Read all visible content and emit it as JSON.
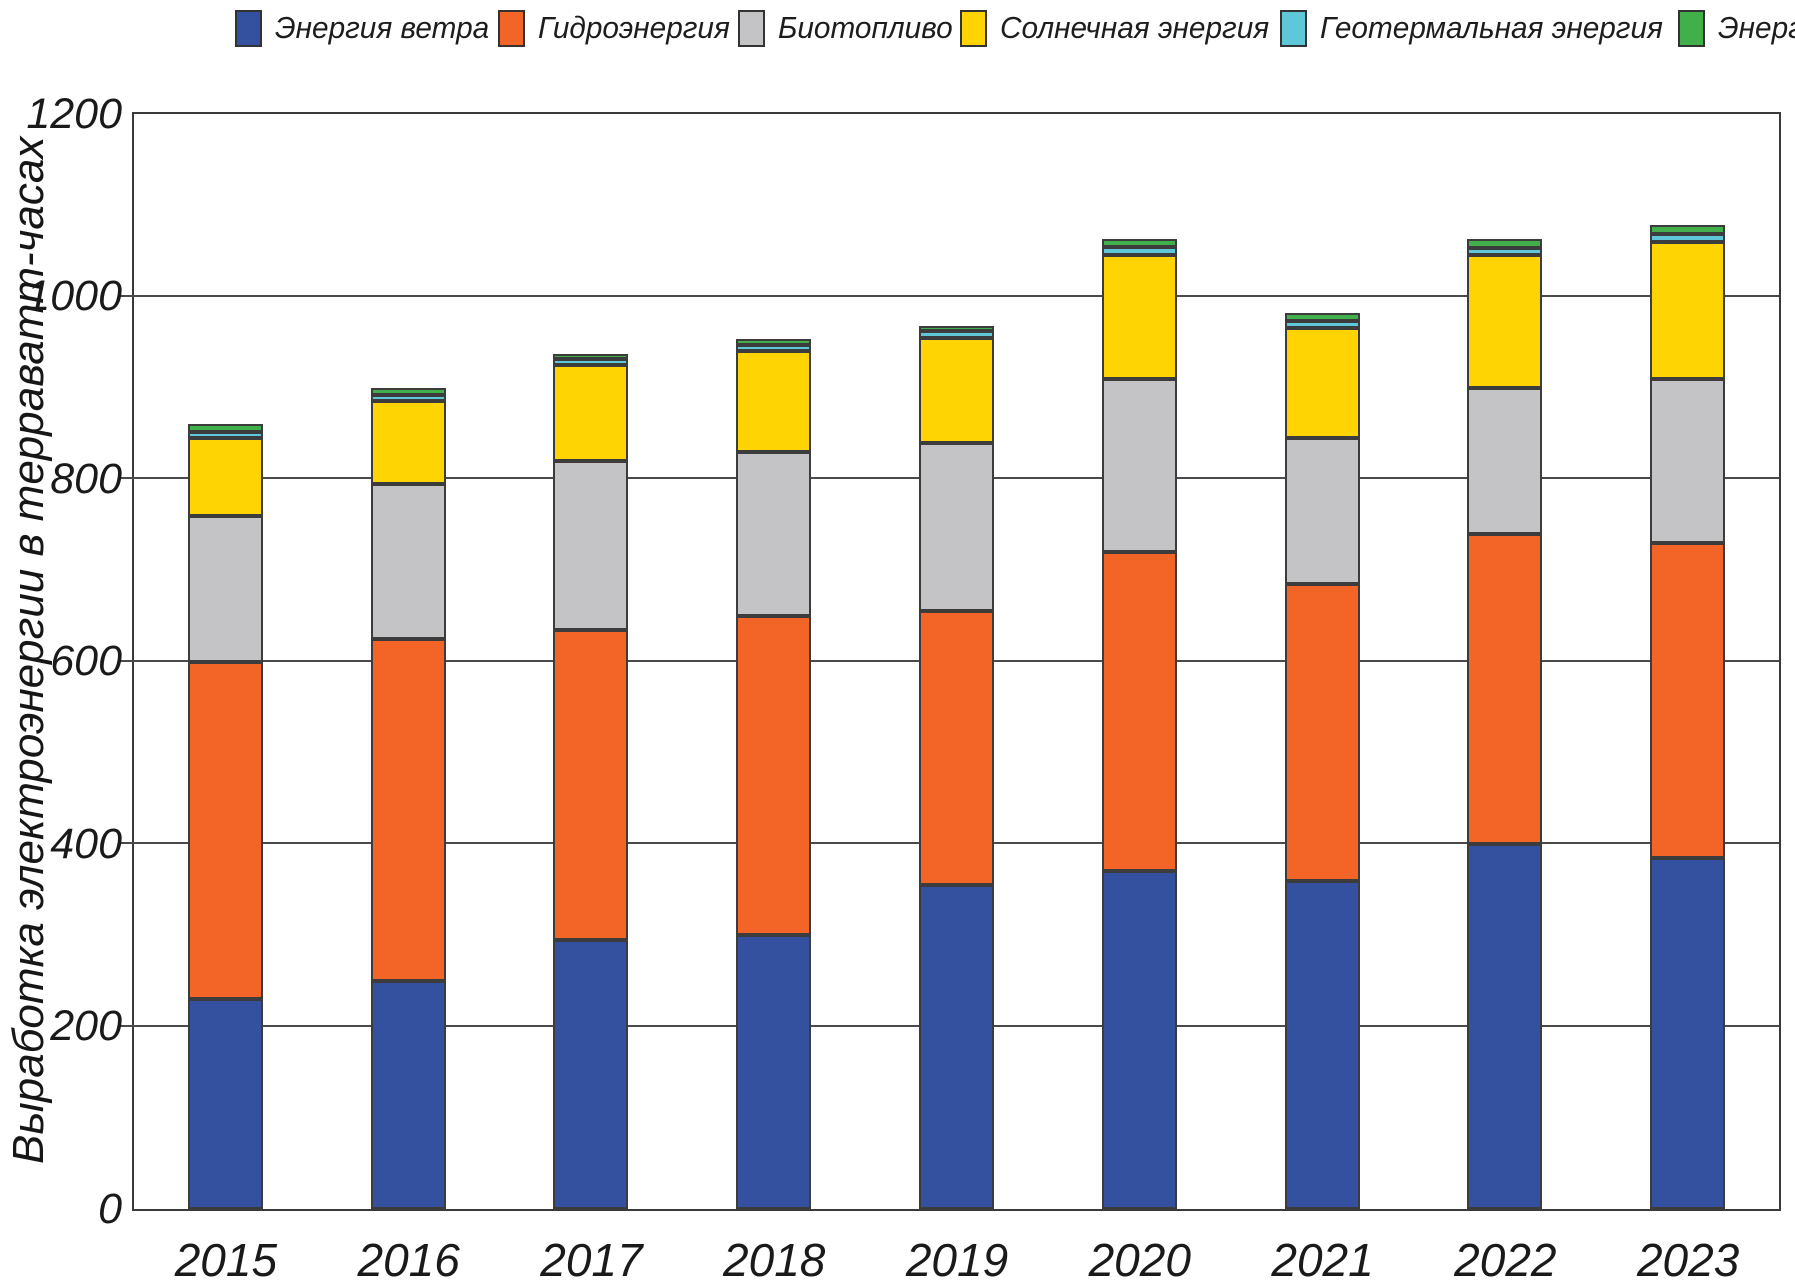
{
  "chart_data": {
    "type": "bar",
    "stacked": true,
    "title": "",
    "categories": [
      "2015",
      "2016",
      "2017",
      "2018",
      "2019",
      "2020",
      "2021",
      "2022",
      "2023"
    ],
    "series": [
      {
        "name": "Энергия ветра",
        "color": "#33519E",
        "values": [
          230,
          250,
          295,
          300,
          355,
          370,
          360,
          400,
          385
        ]
      },
      {
        "name": "Гидроэнергия",
        "color": "#F26527",
        "values": [
          370,
          375,
          340,
          350,
          300,
          350,
          325,
          340,
          345
        ]
      },
      {
        "name": "Биотопливо",
        "color": "#C4C4C6",
        "values": [
          160,
          170,
          185,
          180,
          185,
          190,
          160,
          160,
          180
        ]
      },
      {
        "name": "Солнечная энергия",
        "color": "#FFD402",
        "values": [
          85,
          90,
          105,
          110,
          115,
          135,
          120,
          145,
          150
        ]
      },
      {
        "name": "Геотермальная энергия",
        "color": "#5FC8D8",
        "values": [
          7,
          7,
          6,
          7,
          7,
          9,
          8,
          8,
          8
        ]
      },
      {
        "name": "Энергия океана",
        "color": "#42B04A",
        "values": [
          8,
          8,
          6,
          6,
          6,
          9,
          9,
          10,
          10
        ]
      }
    ],
    "xlabel": "",
    "ylabel": "Выработка электроэнергии в терраватт-часах",
    "ylim": [
      0,
      1200
    ],
    "yticks": [
      0,
      200,
      400,
      600,
      800,
      1000,
      1200
    ],
    "grid": true,
    "legend_position": "top",
    "axis_color": "#3a3a3a",
    "gridline_color": "#4a4a4a"
  }
}
